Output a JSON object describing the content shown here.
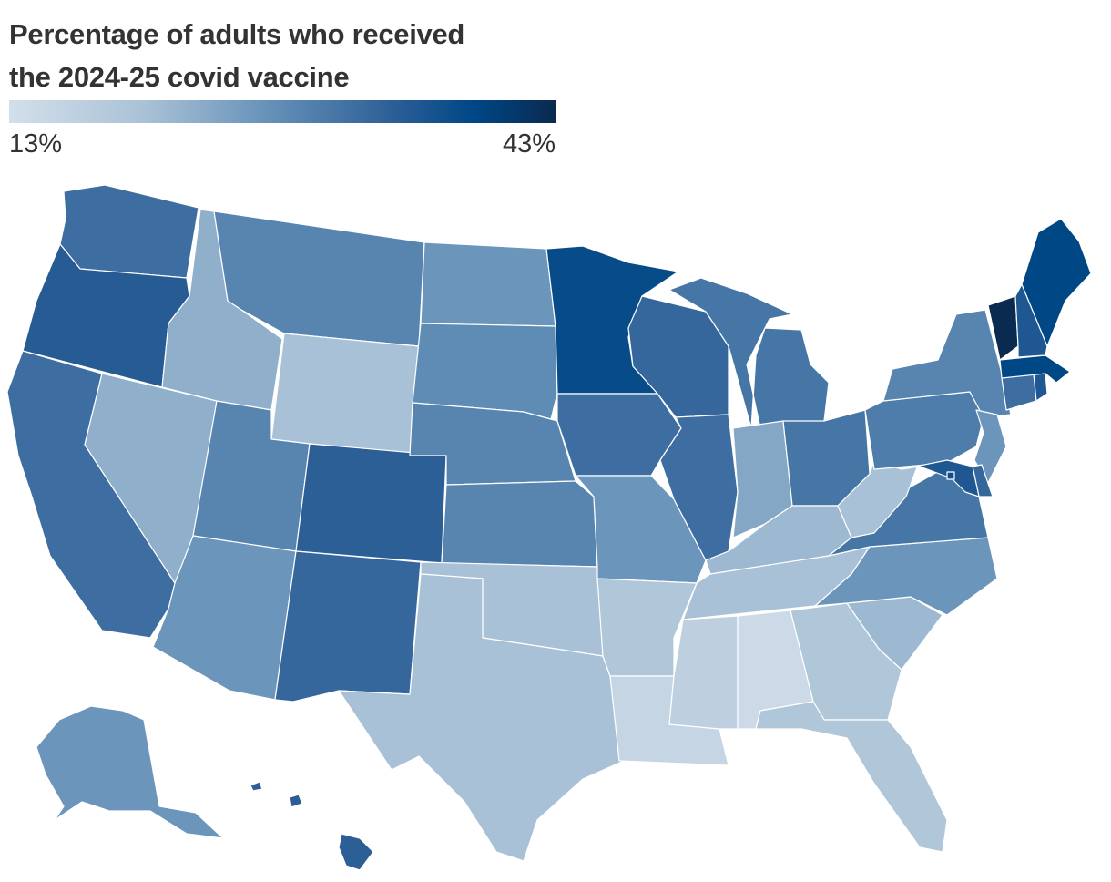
{
  "title_line1": "Percentage of adults who received",
  "title_line2": "the 2024-25 covid vaccine",
  "legend": {
    "min_label": "13%",
    "max_label": "43%",
    "min_value": 13,
    "max_value": 43,
    "colors": [
      "#d3dfea",
      "#a9c1d6",
      "#5f8cb5",
      "#2d5f97",
      "#004786",
      "#0a2a4f"
    ]
  },
  "states": {
    "WA": 29,
    "OR": 32,
    "CA": 29,
    "NV": 21,
    "ID": 21,
    "MT": 26,
    "WY": 19,
    "UT": 26,
    "AZ": 24,
    "CO": 31,
    "NM": 30,
    "ND": 24,
    "SD": 25,
    "NE": 26,
    "KS": 26,
    "OK": 19,
    "TX": 19,
    "MN": 36,
    "IA": 29,
    "MO": 24,
    "AR": 18,
    "LA": 15,
    "WI": 30,
    "IL": 29,
    "MI": 28,
    "IN": 22,
    "OH": 28,
    "KY": 20,
    "TN": 19,
    "MS": 16,
    "AL": 14,
    "GA": 18,
    "FL": 18,
    "SC": 20,
    "NC": 24,
    "VA": 28,
    "WV": 19,
    "PA": 27,
    "NY": 26,
    "NJ": 24,
    "DE": 30,
    "MD": 33,
    "DC": 35,
    "CT": 29,
    "RI": 33,
    "MA": 37,
    "VT": 43,
    "NH": 33,
    "ME": 37,
    "AK": 24,
    "HI": 31
  }
}
